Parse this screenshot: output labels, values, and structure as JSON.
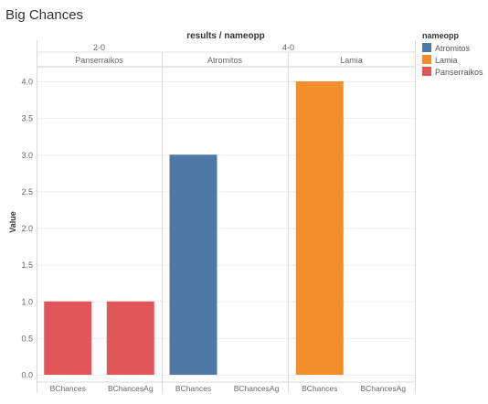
{
  "page": {
    "title": "Big Chances"
  },
  "chart_data": {
    "type": "bar",
    "title": "Big Chances",
    "header_title": "results / nameopp",
    "ylabel": "Value",
    "ylim": [
      0,
      4.2
    ],
    "yticks": [
      "0.0",
      "0.5",
      "1.0",
      "1.5",
      "2.0",
      "2.5",
      "3.0",
      "3.5",
      "4.0"
    ],
    "results": [
      {
        "label": "2-0",
        "span": [
          0,
          1
        ]
      },
      {
        "label": "4-0",
        "span": [
          1,
          3
        ]
      }
    ],
    "panes": [
      {
        "name": "Panserraikos",
        "color": "#e15759",
        "bars": [
          {
            "category": "BChances",
            "value": 1
          },
          {
            "category": "BChancesAg",
            "value": 1
          }
        ]
      },
      {
        "name": "Atromitos",
        "color": "#4e79a7",
        "bars": [
          {
            "category": "BChances",
            "value": 3
          },
          {
            "category": "BChancesAg",
            "value": 0
          }
        ]
      },
      {
        "name": "Lamia",
        "color": "#f28e2b",
        "bars": [
          {
            "category": "BChances",
            "value": 4
          },
          {
            "category": "BChancesAg",
            "value": 0
          }
        ]
      }
    ],
    "legend": {
      "title": "nameopp",
      "position": "top-right",
      "items": [
        {
          "name": "Atromitos",
          "color": "#4e79a7"
        },
        {
          "name": "Lamia",
          "color": "#f28e2b"
        },
        {
          "name": "Panserraikos",
          "color": "#e15759"
        }
      ]
    }
  }
}
